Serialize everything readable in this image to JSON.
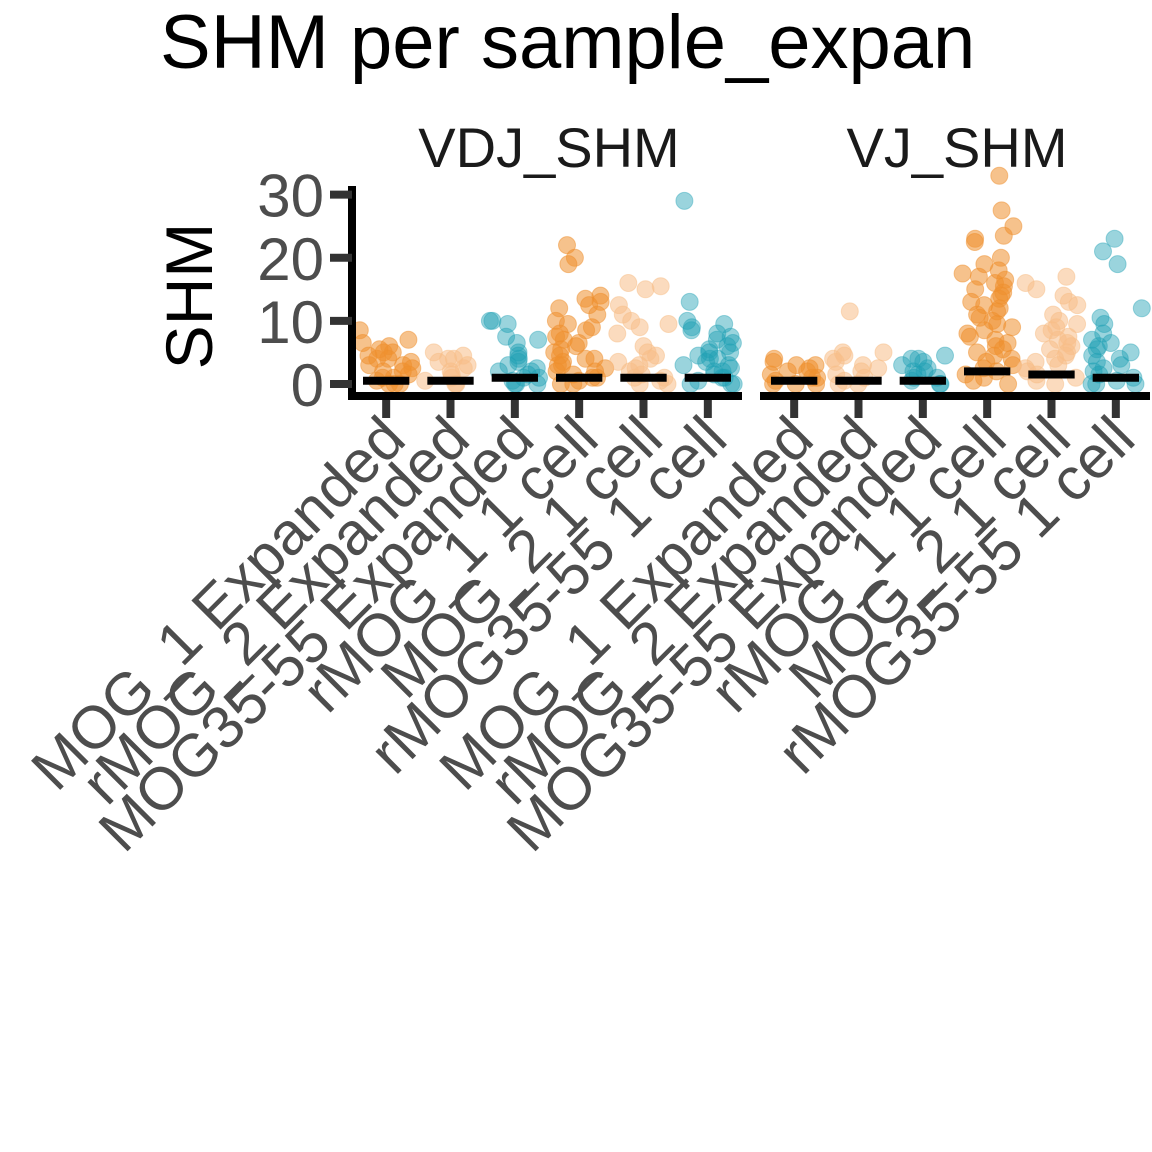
{
  "chart_data": {
    "type": "scatter",
    "title": "SHM per sample_expan",
    "ylabel": "SHM",
    "xlabel": "",
    "ylim": [
      0,
      32
    ],
    "yticks": [
      0,
      10,
      20,
      30
    ],
    "categories": [
      "MOG_1 Expanded",
      "rMOG_2 Expanded",
      "MOG35-55 Expanded",
      "rMOG_1 1 cell",
      "MOG_2 1 cell",
      "rMOG35-55 1 cell"
    ],
    "colors": {
      "dark_orange": "#EE8F2E",
      "light_orange": "#F7BE88",
      "teal": "#1FA0B4",
      "median_bar": "#000000"
    },
    "category_colors": [
      "dark_orange",
      "light_orange",
      "teal",
      "dark_orange",
      "light_orange",
      "teal"
    ],
    "grid": false,
    "legend": "none",
    "facets": [
      {
        "label": "VDJ_SHM",
        "medians": [
          0.5,
          0.5,
          1,
          1,
          1,
          1
        ],
        "points": [
          {
            "category": 0,
            "values": [
              8.5,
              7,
              6.5,
              6,
              5.5,
              5,
              5,
              4.5,
              4,
              4,
              3.5,
              3,
              3,
              2.5,
              2,
              2,
              1.5,
              1,
              1,
              0.5,
              0,
              0,
              0
            ]
          },
          {
            "category": 1,
            "values": [
              5,
              4.5,
              4,
              4,
              3.5,
              3,
              2.5,
              2,
              1.5,
              1,
              0.5,
              0,
              0
            ]
          },
          {
            "category": 2,
            "values": [
              10,
              10,
              9.5,
              7.5,
              7,
              6.5,
              5,
              4.5,
              4,
              3.5,
              3,
              2.5,
              2,
              2,
              1.5,
              1,
              1,
              0.5,
              0,
              0,
              0
            ]
          },
          {
            "category": 3,
            "values": [
              22,
              20,
              19,
              14,
              13.5,
              13,
              12.5,
              12,
              11,
              10,
              9.5,
              9,
              8.5,
              8,
              7.5,
              7,
              6.5,
              6,
              5.5,
              5,
              4.5,
              4,
              4,
              3.5,
              3,
              3,
              2.5,
              2,
              2,
              1.5,
              1,
              1,
              0.5,
              0,
              0
            ]
          },
          {
            "category": 4,
            "values": [
              16,
              15.5,
              15,
              12.5,
              11,
              10,
              9.5,
              9,
              8,
              6,
              5,
              4.5,
              4,
              3.5,
              3,
              2.5,
              2,
              1.5,
              1,
              1,
              0.5,
              0,
              0
            ]
          },
          {
            "category": 5,
            "values": [
              29,
              13,
              10,
              9.5,
              9,
              8.5,
              8,
              7.5,
              7,
              6.5,
              6,
              5.5,
              5,
              5,
              4.5,
              4,
              4,
              3.5,
              3,
              3,
              2.5,
              2,
              2,
              1.5,
              1,
              1,
              0.5,
              0,
              0,
              0
            ]
          }
        ]
      },
      {
        "label": "VJ_SHM",
        "medians": [
          0.5,
          0.5,
          0.5,
          2,
          1.5,
          1
        ],
        "points": [
          {
            "category": 0,
            "values": [
              4,
              3.5,
              3,
              3,
              2.5,
              2,
              2,
              1.5,
              1,
              1,
              0.5,
              0,
              0,
              0
            ]
          },
          {
            "category": 1,
            "values": [
              11.5,
              5,
              5,
              4.5,
              4,
              3.5,
              3,
              2.5,
              2,
              1.5,
              1,
              0.5,
              0,
              0
            ]
          },
          {
            "category": 2,
            "values": [
              4.5,
              4,
              4,
              3.5,
              3,
              2.5,
              2,
              2,
              1.5,
              1,
              1,
              0.5,
              0,
              0
            ]
          },
          {
            "category": 3,
            "values": [
              33,
              27.5,
              25,
              23.5,
              23,
              22.5,
              20,
              19,
              18,
              17.5,
              17,
              16.5,
              16,
              15.5,
              15,
              14.5,
              14,
              13.5,
              13,
              12.5,
              12,
              11.5,
              11,
              10.5,
              10,
              9.5,
              9,
              8.5,
              8,
              7.5,
              7,
              6.5,
              6,
              5.5,
              5,
              4.5,
              4,
              3.5,
              3,
              2.5,
              2,
              1.5,
              1,
              0.5,
              0
            ]
          },
          {
            "category": 4,
            "values": [
              17,
              16,
              15,
              14,
              13,
              12.5,
              11,
              10,
              9.5,
              9,
              8.5,
              8,
              7.5,
              7,
              6.5,
              6,
              5.5,
              5,
              4.5,
              4,
              3.5,
              3,
              2.5,
              2,
              1.5,
              1,
              0.5,
              0
            ]
          },
          {
            "category": 5,
            "values": [
              23,
              21,
              19,
              12,
              10.5,
              9.5,
              8,
              7,
              6.5,
              6,
              5.5,
              5,
              4.5,
              4,
              3.5,
              3,
              2.5,
              2,
              1.5,
              1,
              0.5,
              0,
              0,
              0
            ]
          }
        ]
      }
    ]
  }
}
